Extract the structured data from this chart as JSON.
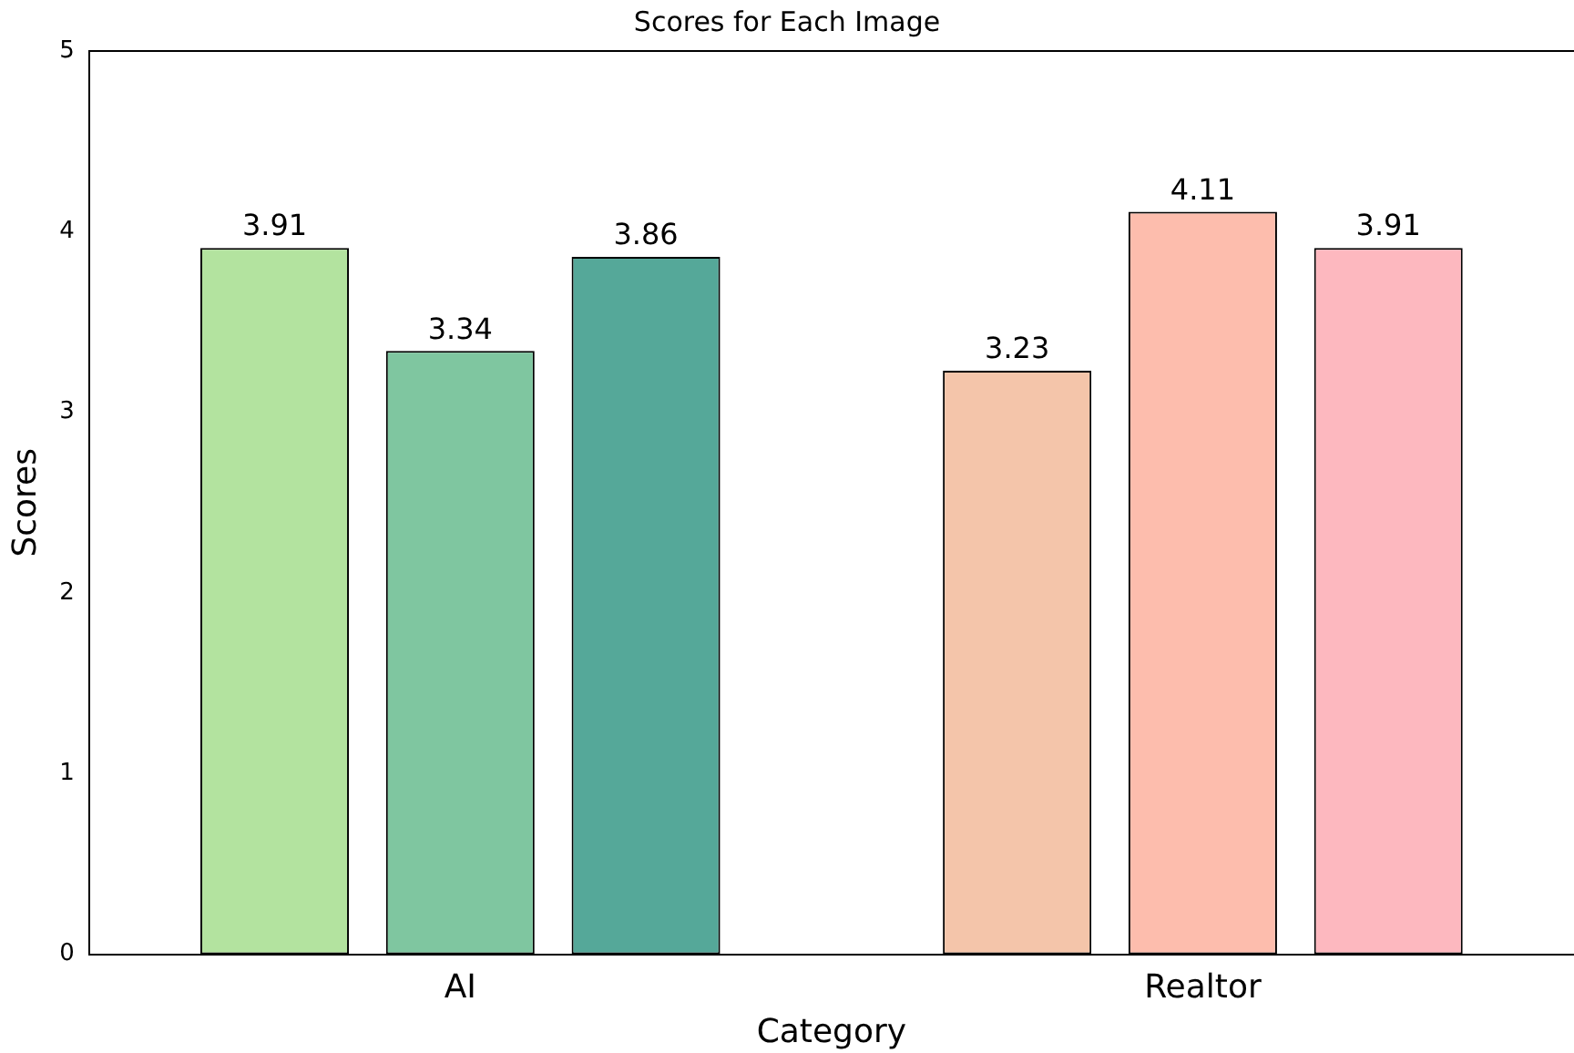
{
  "chart_data": {
    "type": "bar",
    "title": "Scores for Each Image",
    "xlabel": "Category",
    "ylabel": "Scores",
    "categories": [
      "AI",
      "Realtor"
    ],
    "series": [
      {
        "colors": [
          "#b3e39f",
          "#f4c5aa"
        ],
        "values": [
          3.91,
          3.23
        ]
      },
      {
        "colors": [
          "#7fc6a0",
          "#fdbdad"
        ],
        "values": [
          3.34,
          4.11
        ]
      },
      {
        "colors": [
          "#55a899",
          "#fdb8bf"
        ],
        "values": [
          3.86,
          3.91
        ]
      }
    ],
    "ylim": [
      0,
      5
    ],
    "yticks": [
      0,
      1,
      2,
      3,
      4,
      5
    ],
    "grid": false,
    "legend": false,
    "data_labels": true
  }
}
